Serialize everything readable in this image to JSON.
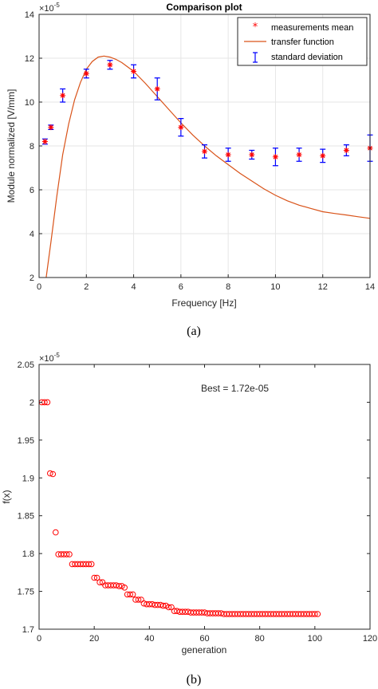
{
  "chart_data": [
    {
      "type": "scatter",
      "title": "Comparison plot",
      "xlabel": "Frequency [Hz]",
      "ylabel": "Module normalized [V/mm]",
      "y_exponent_label": "×10",
      "y_exponent_power": "-5",
      "xlim": [
        0,
        14
      ],
      "ylim": [
        2,
        14
      ],
      "xticks": [
        "0",
        "2",
        "4",
        "6",
        "8",
        "10",
        "12",
        "14"
      ],
      "yticks": [
        "2",
        "4",
        "6",
        "8",
        "10",
        "12",
        "14"
      ],
      "grid": true,
      "legend_position": "top-right",
      "caption": "(a)",
      "series": [
        {
          "name": "measurements mean",
          "kind": "scatter",
          "color": "#ff0000",
          "x": [
            0.25,
            0.5,
            1,
            2,
            3,
            4,
            5,
            6,
            7,
            8,
            9,
            10,
            11,
            12,
            13,
            14
          ],
          "y": [
            8.2,
            8.85,
            10.3,
            11.3,
            11.7,
            11.4,
            10.6,
            8.85,
            7.75,
            7.6,
            7.6,
            7.5,
            7.6,
            7.55,
            7.8,
            7.9
          ]
        },
        {
          "name": "transfer function",
          "kind": "line",
          "color": "#d95319",
          "x": [
            0.3,
            0.5,
            0.75,
            1,
            1.25,
            1.5,
            1.75,
            2,
            2.25,
            2.5,
            2.75,
            3,
            3.25,
            3.5,
            4,
            4.5,
            5,
            5.5,
            6,
            6.5,
            7,
            7.5,
            8,
            8.5,
            9,
            9.5,
            10,
            10.5,
            11,
            11.5,
            12,
            12.5,
            13,
            13.5,
            14
          ],
          "y": [
            2.0,
            3.6,
            5.7,
            7.6,
            9.0,
            10.1,
            10.9,
            11.5,
            11.85,
            12.05,
            12.1,
            12.05,
            11.95,
            11.8,
            11.4,
            10.85,
            10.25,
            9.65,
            9.05,
            8.5,
            8.0,
            7.55,
            7.15,
            6.75,
            6.4,
            6.05,
            5.75,
            5.5,
            5.3,
            5.15,
            5.0,
            4.92,
            4.85,
            4.77,
            4.7
          ]
        },
        {
          "name": "standard deviation",
          "kind": "errorbar",
          "color": "#0000ff",
          "x": [
            0.25,
            0.5,
            1,
            2,
            3,
            4,
            5,
            6,
            7,
            8,
            9,
            10,
            11,
            12,
            13,
            14
          ],
          "y": [
            8.2,
            8.85,
            10.3,
            11.3,
            11.7,
            11.4,
            10.6,
            8.85,
            7.75,
            7.6,
            7.6,
            7.5,
            7.6,
            7.55,
            7.8,
            7.9
          ],
          "err": [
            0.12,
            0.1,
            0.3,
            0.2,
            0.2,
            0.3,
            0.5,
            0.4,
            0.3,
            0.3,
            0.2,
            0.4,
            0.3,
            0.3,
            0.25,
            0.6
          ]
        }
      ]
    },
    {
      "type": "scatter",
      "title": "",
      "xlabel": "generation",
      "ylabel": "f(x)",
      "y_exponent_label": "×10",
      "y_exponent_power": "-5",
      "xlim": [
        0,
        120
      ],
      "ylim": [
        1.7,
        2.05
      ],
      "xticks": [
        "0",
        "20",
        "40",
        "60",
        "80",
        "100",
        "120"
      ],
      "yticks": [
        "1.7",
        "1.75",
        "1.8",
        "1.85",
        "1.9",
        "1.95",
        "2",
        "2.05"
      ],
      "grid": false,
      "annotation": "Best = 1.72e-05",
      "caption": "(b)",
      "series": [
        {
          "name": "",
          "kind": "circles",
          "color": "#ff0000",
          "x": [
            1,
            2,
            3,
            4,
            5,
            6,
            7,
            8,
            9,
            10,
            11,
            12,
            13,
            14,
            15,
            16,
            17,
            18,
            19,
            20,
            21,
            22,
            23,
            24,
            25,
            26,
            27,
            28,
            29,
            30,
            31,
            32,
            33,
            34,
            35,
            36,
            37,
            38,
            39,
            40,
            41,
            42,
            43,
            44,
            45,
            46,
            47,
            48,
            49,
            50,
            51,
            52,
            53,
            54,
            55,
            56,
            57,
            58,
            59,
            60,
            61,
            62,
            63,
            64,
            65,
            66,
            67,
            68,
            69,
            70,
            71,
            72,
            73,
            74,
            75,
            76,
            77,
            78,
            79,
            80,
            81,
            82,
            83,
            84,
            85,
            86,
            87,
            88,
            89,
            90,
            91,
            92,
            93,
            94,
            95,
            96,
            97,
            98,
            99,
            100,
            101
          ],
          "y": [
            2.0,
            2.0,
            2.0,
            1.906,
            1.905,
            1.828,
            1.799,
            1.799,
            1.799,
            1.799,
            1.799,
            1.786,
            1.786,
            1.786,
            1.786,
            1.786,
            1.786,
            1.786,
            1.786,
            1.768,
            1.768,
            1.762,
            1.762,
            1.758,
            1.758,
            1.758,
            1.758,
            1.758,
            1.757,
            1.757,
            1.755,
            1.746,
            1.746,
            1.746,
            1.739,
            1.739,
            1.739,
            1.734,
            1.733,
            1.733,
            1.733,
            1.732,
            1.732,
            1.732,
            1.731,
            1.731,
            1.729,
            1.729,
            1.724,
            1.724,
            1.723,
            1.723,
            1.723,
            1.723,
            1.722,
            1.722,
            1.722,
            1.722,
            1.722,
            1.722,
            1.721,
            1.721,
            1.721,
            1.721,
            1.721,
            1.721,
            1.72,
            1.72,
            1.72,
            1.72,
            1.72,
            1.72,
            1.72,
            1.72,
            1.72,
            1.72,
            1.72,
            1.72,
            1.72,
            1.72,
            1.72,
            1.72,
            1.72,
            1.72,
            1.72,
            1.72,
            1.72,
            1.72,
            1.72,
            1.72,
            1.72,
            1.72,
            1.72,
            1.72,
            1.72,
            1.72,
            1.72,
            1.72,
            1.72,
            1.72,
            1.72
          ]
        }
      ]
    }
  ]
}
